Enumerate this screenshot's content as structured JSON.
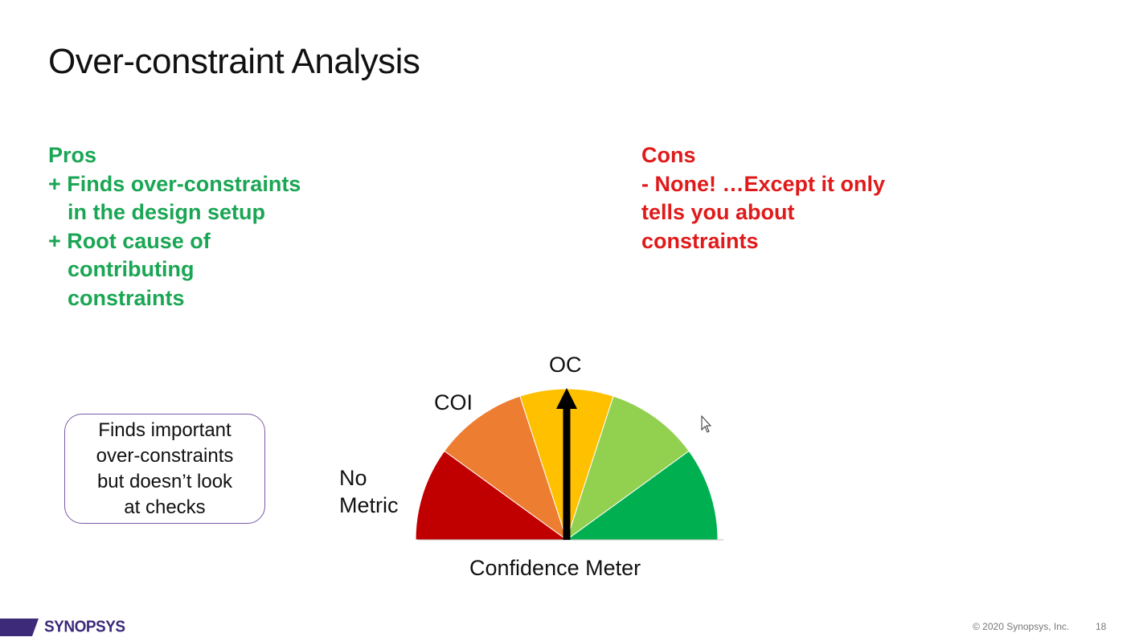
{
  "slide": {
    "title": "Over-constraint Analysis",
    "page_number": "18",
    "copyright": "© 2020 Synopsys, Inc.",
    "logo_text": "SYNOPSYS",
    "brand_color": "#3d2b7a"
  },
  "pros": {
    "heading": "Pros",
    "color": "#1aa654",
    "lines": [
      "+ Finds over-constraints",
      "in the design setup",
      "+ Root cause of",
      "contributing",
      "constraints"
    ]
  },
  "cons": {
    "heading": "Cons",
    "color": "#e01a1a",
    "lines": [
      "- None! …Except it only",
      "tells you about",
      "constraints"
    ]
  },
  "note": {
    "lines": [
      "Finds important",
      "over-constraints",
      "but doesn’t look",
      "at checks"
    ]
  },
  "meter": {
    "caption": "Confidence Meter",
    "label_oc": "OC",
    "label_coi": "COI",
    "label_no_metric_1": "No",
    "label_no_metric_2": "Metric",
    "segment_colors": [
      "#c00000",
      "#ed7d31",
      "#ffc000",
      "#92d050",
      "#00b050"
    ],
    "needle_color": "#000000"
  }
}
